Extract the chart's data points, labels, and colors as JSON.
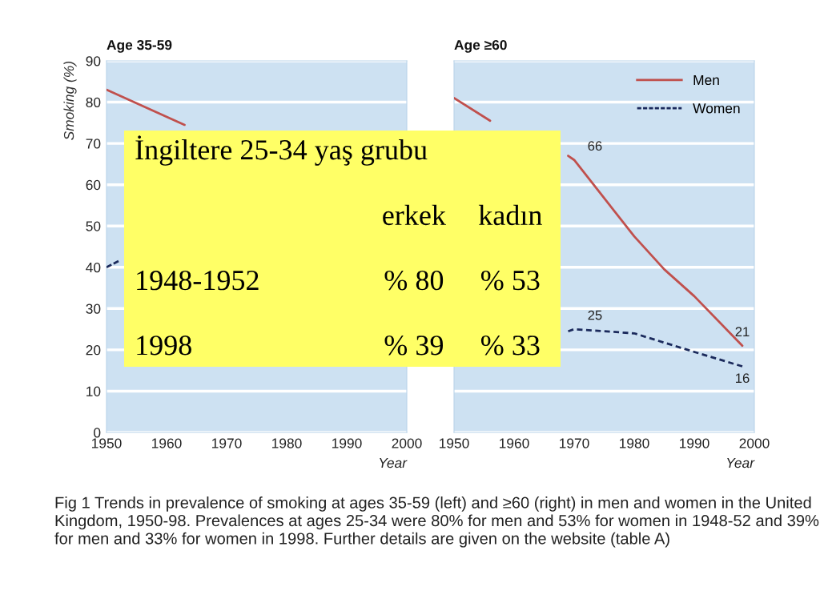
{
  "chart_data": [
    {
      "type": "line",
      "title": "Age 35-59",
      "ylabel": "Smoking (%)",
      "xlabel": "Year",
      "xlim": [
        1950,
        2000
      ],
      "xticks": [
        1950,
        1960,
        1970,
        1980,
        1990,
        2000
      ],
      "ylim": [
        0,
        90
      ],
      "yticks": [
        0,
        10,
        20,
        30,
        40,
        50,
        60,
        70,
        80,
        90
      ],
      "grid": "y",
      "series": [
        {
          "color": "#c0504d",
          "line_style": "solid",
          "x": [
            1950,
            1963
          ],
          "values": [
            83,
            74.5
          ]
        },
        {
          "color": "#1b2a5c",
          "line_style": "dashed",
          "x": [
            1950,
            1952
          ],
          "values": [
            40,
            41.5
          ]
        }
      ],
      "annotations": [
        "Fig 1 Trends in prevalence of smoking at ages 35-59 (left) and ≥60 (right) in men and women in the United Kingdom, 1950-98. Prevalences at ages 25-34 were 80% for men and 53% for women in 1948-52 and 39% for men and 33% for women in 1998. Further details are given on the website (table A)"
      ]
    },
    {
      "type": "line",
      "title": "Age ≥60",
      "xlabel": "Year",
      "xlim": [
        1950,
        2000
      ],
      "xticks": [
        1950,
        1960,
        1970,
        1980,
        1990,
        2000
      ],
      "ylim": [
        0,
        90
      ],
      "yticks": [
        0,
        10,
        20,
        30,
        40,
        50,
        60,
        70,
        80,
        90
      ],
      "grid": "y",
      "tick_labels": "x",
      "legend": "top right",
      "series": [
        {
          "name": "Men",
          "color": "#c0504d",
          "line_style": "solid",
          "x": [
            1950,
            1956,
            1962,
            1969,
            1970,
            1980,
            1985,
            1990,
            1998
          ],
          "values": [
            81,
            75.5,
            null,
            67,
            66,
            47.5,
            39.5,
            33,
            21
          ],
          "value_labels": [
            null,
            null,
            null,
            null,
            "66",
            null,
            null,
            null,
            "21"
          ]
        },
        {
          "name": "Women",
          "color": "#1b2a5c",
          "line_style": "dashed",
          "x": [
            1969,
            1970,
            1980,
            1990,
            1998
          ],
          "values": [
            24.5,
            25,
            24,
            19.5,
            16
          ],
          "value_labels": [
            null,
            "25",
            null,
            null,
            "16"
          ]
        }
      ]
    },
    {
      "type": "other",
      "title": "İngiltere 25-34 yaş grubu",
      "categories": [
        "erkek",
        "kadın"
      ],
      "y_categories": [
        "1948-1952",
        "1998"
      ],
      "cell_labels": [
        [
          "% 80",
          "% 53"
        ],
        [
          "% 39",
          "% 33"
        ]
      ]
    }
  ]
}
